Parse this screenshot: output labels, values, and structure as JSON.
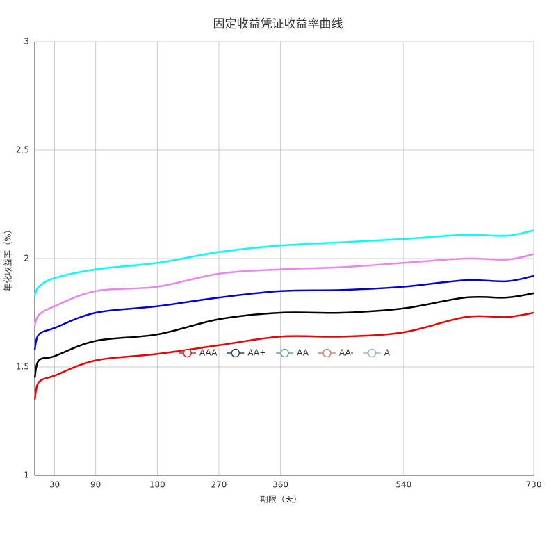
{
  "chart_data": {
    "type": "line",
    "title": "固定收益凭证收益率曲线",
    "x_label": "期限（天）",
    "y_label": "年化收益率（%）",
    "x": [
      1,
      7,
      30,
      90,
      180,
      270,
      360,
      450,
      540,
      630,
      690,
      730
    ],
    "series": [
      {
        "name": "AAA",
        "color": "#ee0000",
        "legend_color": "#c23531",
        "values": [
          1.35,
          1.43,
          1.46,
          1.53,
          1.56,
          1.6,
          1.64,
          1.64,
          1.66,
          1.73,
          1.73,
          1.75
        ]
      },
      {
        "name": "AA+",
        "color": "#000000",
        "legend_color": "#2f4554",
        "values": [
          1.45,
          1.53,
          1.55,
          1.62,
          1.65,
          1.72,
          1.75,
          1.75,
          1.77,
          1.82,
          1.82,
          1.84
        ]
      },
      {
        "name": "AA",
        "color": "#0000dd",
        "legend_color": "#61a0a8",
        "values": [
          1.58,
          1.65,
          1.68,
          1.75,
          1.78,
          1.82,
          1.85,
          1.855,
          1.87,
          1.9,
          1.895,
          1.92
        ]
      },
      {
        "name": "AA-",
        "color": "#ee82ee",
        "legend_color": "#d48265",
        "values": [
          1.69,
          1.74,
          1.78,
          1.85,
          1.87,
          1.93,
          1.95,
          1.96,
          1.98,
          2.0,
          1.995,
          2.02
        ]
      },
      {
        "name": "A",
        "color": "#00ffff",
        "legend_color": "#91c7ae",
        "values": [
          1.83,
          1.87,
          1.91,
          1.95,
          1.98,
          2.03,
          2.06,
          2.075,
          2.09,
          2.11,
          2.105,
          2.13
        ]
      }
    ],
    "xlim": [
      1,
      730
    ],
    "xticks": [
      30,
      90,
      180,
      270,
      360,
      540,
      730
    ],
    "ylim": [
      1,
      3
    ],
    "yticks": [
      1,
      1.5,
      2,
      2.5,
      3
    ],
    "grid": true,
    "smooth": true
  }
}
